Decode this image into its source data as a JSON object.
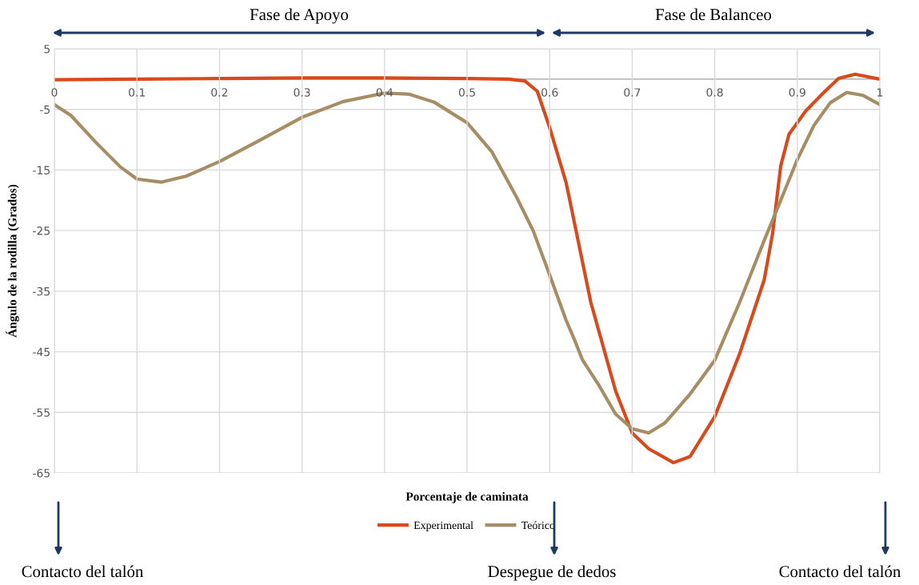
{
  "chart_data": {
    "type": "line",
    "xlabel": "Porcentaje de caminata",
    "ylabel": "Ángulo de la rodilla (Grados)",
    "xlim": [
      0,
      1
    ],
    "ylim": [
      -65,
      5
    ],
    "xticks": [
      0,
      0.1,
      0.2,
      0.3,
      0.4,
      0.5,
      0.6,
      0.7,
      0.8,
      0.9,
      1
    ],
    "yticks": [
      5,
      -5,
      -15,
      -25,
      -35,
      -45,
      -55,
      -65
    ],
    "grid": true,
    "legend": "bottom",
    "line_style": "solid",
    "marker": "none",
    "series": [
      {
        "name": "Experimental",
        "color": "#d84a1b",
        "x": [
          0,
          0.1,
          0.2,
          0.3,
          0.4,
          0.5,
          0.55,
          0.57,
          0.585,
          0.6,
          0.62,
          0.65,
          0.68,
          0.7,
          0.72,
          0.75,
          0.77,
          0.8,
          0.83,
          0.86,
          0.87,
          0.88,
          0.89,
          0.91,
          0.93,
          0.95,
          0.97,
          1
        ],
        "values": [
          -0.1,
          0,
          0.1,
          0.2,
          0.2,
          0.1,
          0,
          -0.3,
          -2,
          -8,
          -17.1,
          -36.9,
          -51.5,
          -58.4,
          -61,
          -63.3,
          -62.3,
          -55.7,
          -45.4,
          -33.1,
          -25.6,
          -14.3,
          -9.1,
          -5.3,
          -2.5,
          0.1,
          0.8,
          0
        ]
      },
      {
        "name": "Teórico",
        "color": "#a68d64",
        "x": [
          0,
          0.02,
          0.05,
          0.08,
          0.1,
          0.13,
          0.16,
          0.2,
          0.25,
          0.3,
          0.35,
          0.4,
          0.43,
          0.46,
          0.5,
          0.53,
          0.56,
          0.58,
          0.6,
          0.62,
          0.63,
          0.64,
          0.66,
          0.68,
          0.7,
          0.72,
          0.74,
          0.77,
          0.8,
          0.83,
          0.86,
          0.88,
          0.9,
          0.92,
          0.94,
          0.96,
          0.98,
          1
        ],
        "values": [
          -4.2,
          -6,
          -10.4,
          -14.5,
          -16.5,
          -17,
          -16,
          -13.6,
          -10,
          -6.3,
          -3.7,
          -2.3,
          -2.5,
          -3.8,
          -7.2,
          -12,
          -19.5,
          -25,
          -32.3,
          -39.8,
          -43,
          -46.4,
          -50.6,
          -55.3,
          -57.7,
          -58.4,
          -56.7,
          -52,
          -46.4,
          -36.9,
          -26.6,
          -20,
          -13.3,
          -7.7,
          -3.9,
          -2.2,
          -2.7,
          -4.2
        ]
      }
    ],
    "annotations": [
      "Fase de Apoyo",
      "Fase de Balanceo",
      "Contacto del talón",
      "Despegue de dedos",
      "Contacto del talón"
    ]
  }
}
